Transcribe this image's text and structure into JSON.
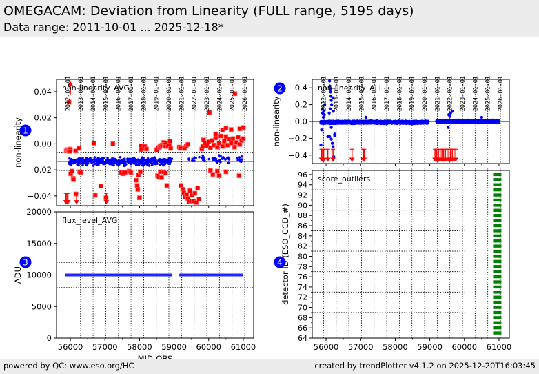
{
  "header": {
    "title": "OMEGACAM: Deviation from Linearity (FULL range, 5195 days)",
    "subtitle": "Data range: 2011-10-01 ... 2025-12-18*"
  },
  "footer": {
    "left": "powered by QC: www.eso.org/HC",
    "right": "created by trendPlotter v4.1.2 on 2025-12-20T16:03:45"
  },
  "colors": {
    "in_range": "#0000ff",
    "outlier": "#ff0000",
    "score": "#008000",
    "badge": "#0000ff",
    "background": "#ececec"
  },
  "chart_data": [
    {
      "id": 1,
      "type": "scatter",
      "badge": "1",
      "title": "non-linearity_AVG",
      "ylabel": "non-linearity",
      "xlabel": "",
      "xlim": [
        55600,
        61300
      ],
      "ylim": [
        -0.0475,
        0.0495
      ],
      "yticks": [
        -0.04,
        -0.02,
        0.0,
        0.02,
        0.04
      ],
      "ytick_labels": [
        "−0.04",
        "−0.02",
        "0.00",
        "0.02",
        "0.04"
      ],
      "date_ticks": [
        "2012-01-01",
        "2013-01-01",
        "2014-01-01",
        "2015-01-01",
        "2016-01-01",
        "2017-01-01",
        "2018-01-01",
        "2019-01-01",
        "2020-01-01",
        "2021-01-01",
        "2022-01-01",
        "2023-01-01",
        "2024-01-01",
        "2025-01-01",
        "2026-01-01"
      ],
      "reference_line": -0.0135,
      "threshold_lines": [
        -0.007,
        -0.0205
      ],
      "in_range_segments": [
        {
          "x_start": 55950,
          "x_end": 58950,
          "y_center": -0.0135,
          "spread": 0.004,
          "count": 420
        },
        {
          "x_start": 59400,
          "x_end": 61000,
          "y_center": -0.012,
          "spread": 0.004,
          "count": 50
        }
      ],
      "outlier_points": [
        [
          55880,
          -0.0055
        ],
        [
          55900,
          -0.005
        ],
        [
          55920,
          -0.0045
        ],
        [
          55940,
          -0.0052
        ],
        [
          55960,
          -0.0048
        ],
        [
          55980,
          -0.004
        ],
        [
          56000,
          -0.0045
        ],
        [
          55990,
          -0.0058
        ],
        [
          56150,
          -0.0055
        ],
        [
          55960,
          0.032
        ],
        [
          56010,
          -0.023
        ],
        [
          56050,
          -0.021
        ],
        [
          56080,
          -0.0265
        ],
        [
          56090,
          -0.0275
        ],
        [
          56160,
          -0.0385
        ],
        [
          56250,
          -0.0035
        ],
        [
          56270,
          -0.0215
        ],
        [
          56300,
          -0.022
        ],
        [
          56680,
          0.0005
        ],
        [
          56720,
          -0.0395
        ],
        [
          56880,
          -0.0325
        ],
        [
          57030,
          -0.0415
        ],
        [
          57230,
          0.0
        ],
        [
          57470,
          -0.022
        ],
        [
          57530,
          -0.023
        ],
        [
          57580,
          -0.022
        ],
        [
          57700,
          -0.021
        ],
        [
          57750,
          -0.022
        ],
        [
          57900,
          -0.028
        ],
        [
          57930,
          -0.032
        ],
        [
          57950,
          -0.035
        ],
        [
          57970,
          -0.024
        ],
        [
          58000,
          -0.0415
        ],
        [
          58020,
          -0.0215
        ],
        [
          58040,
          -0.0015
        ],
        [
          58050,
          -0.0045
        ],
        [
          58100,
          -0.0035
        ],
        [
          58150,
          -0.002
        ],
        [
          58200,
          -0.004
        ],
        [
          58480,
          -0.0045
        ],
        [
          58500,
          -0.005
        ],
        [
          58540,
          -0.003
        ],
        [
          58580,
          -0.0025
        ],
        [
          58600,
          -0.0015
        ],
        [
          58650,
          -0.001
        ],
        [
          58700,
          0.001
        ],
        [
          58720,
          -0.0005
        ],
        [
          58750,
          -0.002
        ],
        [
          58800,
          0.0005
        ],
        [
          58820,
          -0.002
        ],
        [
          58860,
          -0.001
        ],
        [
          58880,
          0.002
        ],
        [
          58900,
          -0.0035
        ],
        [
          58520,
          -0.0245
        ],
        [
          58560,
          -0.0255
        ],
        [
          58600,
          -0.0215
        ],
        [
          58640,
          -0.026
        ],
        [
          58700,
          -0.0215
        ],
        [
          58750,
          -0.0225
        ],
        [
          58790,
          -0.032
        ],
        [
          59150,
          -0.0025
        ],
        [
          59180,
          -0.0035
        ],
        [
          59250,
          -0.003
        ],
        [
          59300,
          -0.0035
        ],
        [
          59350,
          -0.0015
        ],
        [
          59400,
          -0.0005
        ],
        [
          59200,
          -0.032
        ],
        [
          59250,
          -0.035
        ],
        [
          59280,
          -0.0375
        ],
        [
          59320,
          -0.041
        ],
        [
          59360,
          -0.039
        ],
        [
          59400,
          -0.042
        ],
        [
          59430,
          -0.0445
        ],
        [
          59460,
          -0.036
        ],
        [
          59490,
          -0.044
        ],
        [
          59520,
          -0.0395
        ],
        [
          59560,
          -0.044
        ],
        [
          59600,
          -0.038
        ],
        [
          59640,
          -0.045
        ],
        [
          59680,
          -0.034
        ],
        [
          59720,
          -0.0425
        ],
        [
          59800,
          -0.004
        ],
        [
          59830,
          -0.002
        ],
        [
          59850,
          0.003
        ],
        [
          59900,
          0.0005
        ],
        [
          59950,
          -0.0015
        ],
        [
          60000,
          0.0015
        ],
        [
          60050,
          -0.003
        ],
        [
          60100,
          0.0025
        ],
        [
          60150,
          -0.001
        ],
        [
          60200,
          0.0045
        ],
        [
          60250,
          -0.0025
        ],
        [
          60300,
          0.0005
        ],
        [
          60350,
          0.006
        ],
        [
          60400,
          -0.002
        ],
        [
          60450,
          0.002
        ],
        [
          60500,
          0.0055
        ],
        [
          60550,
          -0.001
        ],
        [
          60600,
          0.0035
        ],
        [
          60650,
          0.0005
        ],
        [
          60700,
          0.004
        ],
        [
          60750,
          -0.0025
        ],
        [
          60800,
          0.001
        ],
        [
          60850,
          0.005
        ],
        [
          60900,
          -0.0005
        ],
        [
          60950,
          0.0025
        ],
        [
          61000,
          0.004
        ],
        [
          60020,
          0.024
        ],
        [
          60760,
          0.0385
        ],
        [
          60200,
          0.0075
        ],
        [
          60400,
          0.0105
        ],
        [
          60500,
          0.012
        ],
        [
          60650,
          0.011
        ],
        [
          60900,
          0.0115
        ],
        [
          61000,
          0.0125
        ],
        [
          60050,
          -0.0205
        ],
        [
          60120,
          -0.0235
        ],
        [
          60300,
          -0.0245
        ],
        [
          60250,
          -0.021
        ],
        [
          60500,
          -0.0215
        ],
        [
          60880,
          -0.0245
        ]
      ],
      "down_arrows_mjd": [
        55870,
        55900,
        55930,
        56180,
        57040
      ],
      "up_arrows_mjd": [
        56000
      ]
    },
    {
      "id": 2,
      "type": "scatter",
      "badge": "2",
      "title": "non-linearity_ALL",
      "ylabel": "non-linearity",
      "xlabel": "",
      "xlim": [
        55600,
        61300
      ],
      "ylim": [
        -0.5,
        0.5
      ],
      "yticks": [
        -0.4,
        -0.2,
        0.0,
        0.2,
        0.4
      ],
      "ytick_labels": [
        "−0.4",
        "−0.2",
        "0.0",
        "0.2",
        "0.4"
      ],
      "date_ticks": [
        "2012-01-01",
        "2013-01-01",
        "2014-01-01",
        "2015-01-01",
        "2016-01-01",
        "2017-01-01",
        "2018-01-01",
        "2019-01-01",
        "2020-01-01",
        "2021-01-01",
        "2022-01-01",
        "2023-01-01",
        "2024-01-01",
        "2025-01-01",
        "2026-01-01"
      ],
      "reference_line": 0.0,
      "in_range_segments": [
        {
          "x_start": 55850,
          "x_end": 58950,
          "y_center": -0.01,
          "spread": 0.02,
          "count": 1400
        },
        {
          "x_start": 59200,
          "x_end": 61000,
          "y_center": 0.0,
          "spread": 0.02,
          "count": 900
        }
      ],
      "scatter_points": [
        [
          55890,
          0.15
        ],
        [
          55900,
          0.1
        ],
        [
          55920,
          0.05
        ],
        [
          55930,
          0.12
        ],
        [
          55950,
          0.08
        ],
        [
          55960,
          0.2
        ],
        [
          55870,
          -0.1
        ],
        [
          55850,
          -0.28
        ],
        [
          56100,
          0.48
        ],
        [
          56110,
          0.42
        ],
        [
          56120,
          0.38
        ],
        [
          56130,
          0.35
        ],
        [
          56140,
          0.3
        ],
        [
          56150,
          0.25
        ],
        [
          56160,
          0.2
        ],
        [
          56120,
          0.15
        ],
        [
          56090,
          0.1
        ],
        [
          56200,
          0.28
        ],
        [
          56210,
          0.12
        ],
        [
          56050,
          -0.18
        ],
        [
          56100,
          -0.18
        ],
        [
          56150,
          -0.21
        ],
        [
          56150,
          -0.07
        ],
        [
          56180,
          -0.26
        ],
        [
          56200,
          -0.3
        ],
        [
          56250,
          -0.17
        ],
        [
          56250,
          -0.15
        ],
        [
          56220,
          -0.42
        ],
        [
          57150,
          0.05
        ],
        [
          59550,
          0.08
        ],
        [
          59600,
          0.1
        ],
        [
          59650,
          0.12
        ],
        [
          59580,
          0.06
        ],
        [
          59530,
          -0.07
        ],
        [
          60500,
          0.05
        ]
      ],
      "down_arrows_mjd": [
        55870,
        55900,
        55930,
        56050,
        56200,
        56750,
        57080,
        57100,
        59150,
        59200,
        59250,
        59300,
        59350,
        59400,
        59450,
        59500,
        59550,
        59600,
        59650,
        59700,
        59750
      ]
    },
    {
      "id": 3,
      "type": "scatter",
      "badge": "3",
      "title": "flux_level_AVG",
      "ylabel": "ADU",
      "xlabel": "MJD-OBS",
      "xlim": [
        55600,
        61300
      ],
      "ylim": [
        0,
        20000
      ],
      "yticks": [
        0,
        5000,
        10000,
        15000,
        20000
      ],
      "ytick_labels": [
        "0",
        "5000",
        "10000",
        "15000",
        "20000"
      ],
      "xticks": [
        56000,
        57000,
        58000,
        59000,
        60000,
        61000
      ],
      "xtick_labels": [
        "56000",
        "57000",
        "58000",
        "59000",
        "60000",
        "61000"
      ],
      "reference_line": 10000,
      "threshold_lines": [
        12000,
        8000
      ],
      "in_range_segments": [
        {
          "x_start": 55850,
          "x_end": 58950,
          "y_center": 10000,
          "spread": 0,
          "count": 1
        },
        {
          "x_start": 59150,
          "x_end": 61000,
          "y_center": 10000,
          "spread": 0,
          "count": 1
        }
      ]
    },
    {
      "id": 4,
      "type": "scatter",
      "badge": "4",
      "title": "score_outliers",
      "ylabel": "detector ID (ESO_CCD_#)",
      "xlabel": "",
      "xlim": [
        55600,
        61300
      ],
      "ylim": [
        64,
        96.8
      ],
      "yticks": [
        64,
        66,
        68,
        70,
        72,
        74,
        76,
        78,
        80,
        82,
        84,
        86,
        88,
        90,
        92,
        94,
        96
      ],
      "ytick_labels": [
        "64",
        "66",
        "68",
        "70",
        "72",
        "74",
        "76",
        "78",
        "80",
        "82",
        "84",
        "86",
        "88",
        "90",
        "92",
        "94",
        "96"
      ],
      "xticks": [
        56000,
        57000,
        58000,
        59000,
        60000,
        61000
      ],
      "xtick_labels": [
        "56000",
        "57000",
        "58000",
        "59000",
        "60000",
        "61000"
      ],
      "score_mjd": 60950,
      "score_detectors": [
        65,
        66,
        67,
        68,
        69,
        70,
        71,
        72,
        73,
        74,
        75,
        76,
        77,
        78,
        79,
        80,
        81,
        82,
        83,
        84,
        85,
        86,
        87,
        88,
        89,
        90,
        91,
        92,
        93,
        94,
        95,
        96
      ]
    }
  ]
}
